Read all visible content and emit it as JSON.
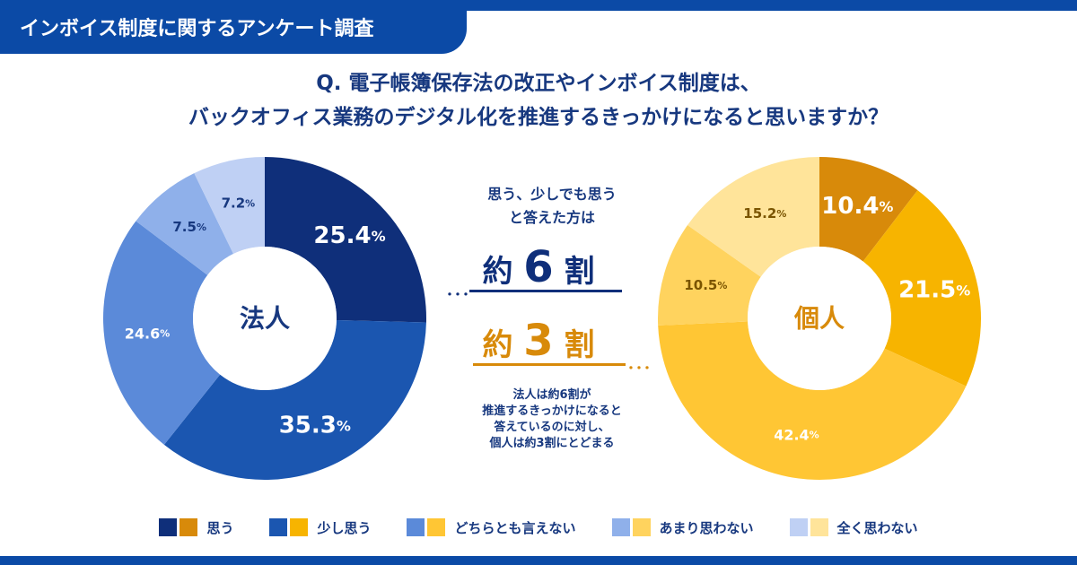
{
  "header": {
    "title": "インボイス制度に関するアンケート調査"
  },
  "question": {
    "line1": "Q. 電子帳簿保存法の改正やインボイス制度は、",
    "line2": "バックオフィス業務のデジタル化を推進するきっかけになると思いますか？"
  },
  "middle": {
    "intro_line1": "思う、少しでも思う",
    "intro_line2": "と答えた方は",
    "six_prefix": "約",
    "six_num": "6",
    "six_suffix": "割",
    "three_prefix": "約",
    "three_num": "3",
    "three_suffix": "割",
    "dots": "･･･",
    "note_lines": [
      "法人は約6割が",
      "推進するきっかけになると",
      "答えているのに対し、",
      "個人は約3割にとどまる"
    ]
  },
  "chart_data": [
    {
      "type": "pie",
      "donut": true,
      "center_label": "法人",
      "categories": [
        "思う",
        "少し思う",
        "どちらとも言えない",
        "あまり思わない",
        "全く思わない"
      ],
      "values": [
        25.4,
        35.3,
        24.6,
        7.5,
        7.2
      ],
      "labels": [
        "25.4",
        "35.3",
        "24.6",
        "7.5",
        "7.2"
      ],
      "unit": "%",
      "colors": [
        "#0f2f7a",
        "#1b56b0",
        "#5b8ad9",
        "#8fb0ea",
        "#bfd0f4"
      ],
      "label_colors": [
        "#ffffff",
        "#ffffff",
        "#ffffff",
        "#17387f",
        "#17387f"
      ],
      "center_text_color": "#17387f"
    },
    {
      "type": "pie",
      "donut": true,
      "center_label": "個人",
      "categories": [
        "思う",
        "少し思う",
        "どちらとも言えない",
        "あまり思わない",
        "全く思わない"
      ],
      "values": [
        10.4,
        21.5,
        42.4,
        10.5,
        15.2
      ],
      "labels": [
        "10.4",
        "21.5",
        "42.4",
        "10.5",
        "15.2"
      ],
      "unit": "%",
      "colors": [
        "#d88a0a",
        "#f7b400",
        "#ffc634",
        "#ffd35e",
        "#ffe49a"
      ],
      "label_colors": [
        "#ffffff",
        "#ffffff",
        "#ffffff",
        "#7a5400",
        "#7a5400"
      ],
      "center_text_color": "#d88a0a"
    }
  ],
  "legend": {
    "items": [
      {
        "label": "思う",
        "color_corp": "#0f2f7a",
        "color_indiv": "#d88a0a"
      },
      {
        "label": "少し思う",
        "color_corp": "#1b56b0",
        "color_indiv": "#f7b400"
      },
      {
        "label": "どちらとも言えない",
        "color_corp": "#5b8ad9",
        "color_indiv": "#ffc634"
      },
      {
        "label": "あまり思わない",
        "color_corp": "#8fb0ea",
        "color_indiv": "#ffd35e"
      },
      {
        "label": "全く思わない",
        "color_corp": "#bfd0f4",
        "color_indiv": "#ffe49a"
      }
    ]
  }
}
